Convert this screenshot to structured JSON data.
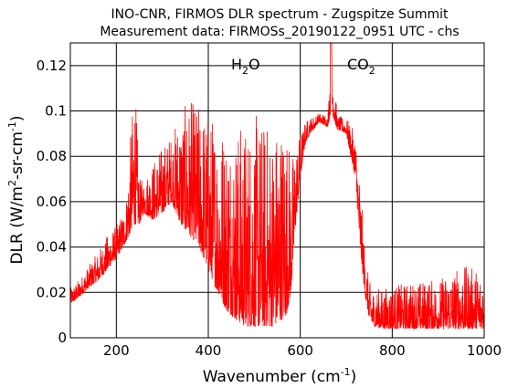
{
  "chart_data": {
    "type": "line",
    "title": "INO-CNR, FIRMOS DLR spectrum - Zugspitze Summit",
    "subtitle": "Measurement data: FIRMOSs_20190122_0951 UTC - chs",
    "xlabel": "Wavenumber (cm",
    "xlabel_sup": "-1",
    "xlabel_tail": ")",
    "ylabel": "DLR (W/m",
    "ylabel_sup1": "2",
    "ylabel_mid": "-sr-cm",
    "ylabel_sup2": "-1",
    "ylabel_tail": ")",
    "xlim": [
      100,
      1000
    ],
    "ylim": [
      0,
      0.13
    ],
    "xticks": [
      200,
      400,
      600,
      800,
      1000
    ],
    "xtick_labels": [
      "200",
      "400",
      "600",
      "800",
      "1000"
    ],
    "yticks": [
      0,
      0.02,
      0.04,
      0.06,
      0.08,
      0.1,
      0.12
    ],
    "ytick_labels": [
      "0",
      "0.02",
      "0.04",
      "0.06",
      "0.08",
      "0.1",
      "0.12"
    ],
    "grid": true,
    "series_color": "#ff0000",
    "annotations": [
      {
        "base": "H",
        "sub": "2",
        "tail": "O",
        "x": 230,
        "y": 0.127
      },
      {
        "base": "CO",
        "sub": "2",
        "tail": "",
        "x": 615,
        "y": 0.127
      }
    ],
    "series": [
      {
        "x": [
          100,
          120,
          140,
          160,
          180,
          200,
          220,
          240,
          250,
          260,
          280,
          300,
          320,
          340,
          360,
          380,
          400,
          420,
          440,
          460,
          480,
          500,
          520,
          540,
          560,
          570,
          580,
          590,
          600,
          610,
          620,
          630,
          640,
          650,
          660,
          667,
          680,
          700,
          720,
          730,
          740,
          750,
          760,
          780,
          800,
          850,
          900,
          950,
          1000
        ],
        "baseline": [
          0.015,
          0.018,
          0.022,
          0.025,
          0.03,
          0.035,
          0.042,
          0.05,
          0.05,
          0.055,
          0.052,
          0.055,
          0.06,
          0.05,
          0.045,
          0.04,
          0.03,
          0.02,
          0.012,
          0.008,
          0.005,
          0.005,
          0.005,
          0.005,
          0.008,
          0.01,
          0.02,
          0.05,
          0.07,
          0.085,
          0.09,
          0.092,
          0.095,
          0.094,
          0.093,
          0.1,
          0.092,
          0.09,
          0.07,
          0.04,
          0.02,
          0.008,
          0.005,
          0.004,
          0.004,
          0.004,
          0.004,
          0.004,
          0.004
        ],
        "upper": [
          0.022,
          0.026,
          0.032,
          0.038,
          0.045,
          0.05,
          0.058,
          0.115,
          0.07,
          0.07,
          0.078,
          0.085,
          0.09,
          0.1,
          0.105,
          0.103,
          0.1,
          0.098,
          0.096,
          0.095,
          0.096,
          0.099,
          0.097,
          0.095,
          0.098,
          0.098,
          0.08,
          0.085,
          0.09,
          0.095,
          0.097,
          0.098,
          0.099,
          0.099,
          0.098,
          0.14,
          0.098,
          0.097,
          0.09,
          0.07,
          0.04,
          0.025,
          0.022,
          0.022,
          0.023,
          0.025,
          0.026,
          0.032,
          0.03
        ]
      }
    ]
  }
}
